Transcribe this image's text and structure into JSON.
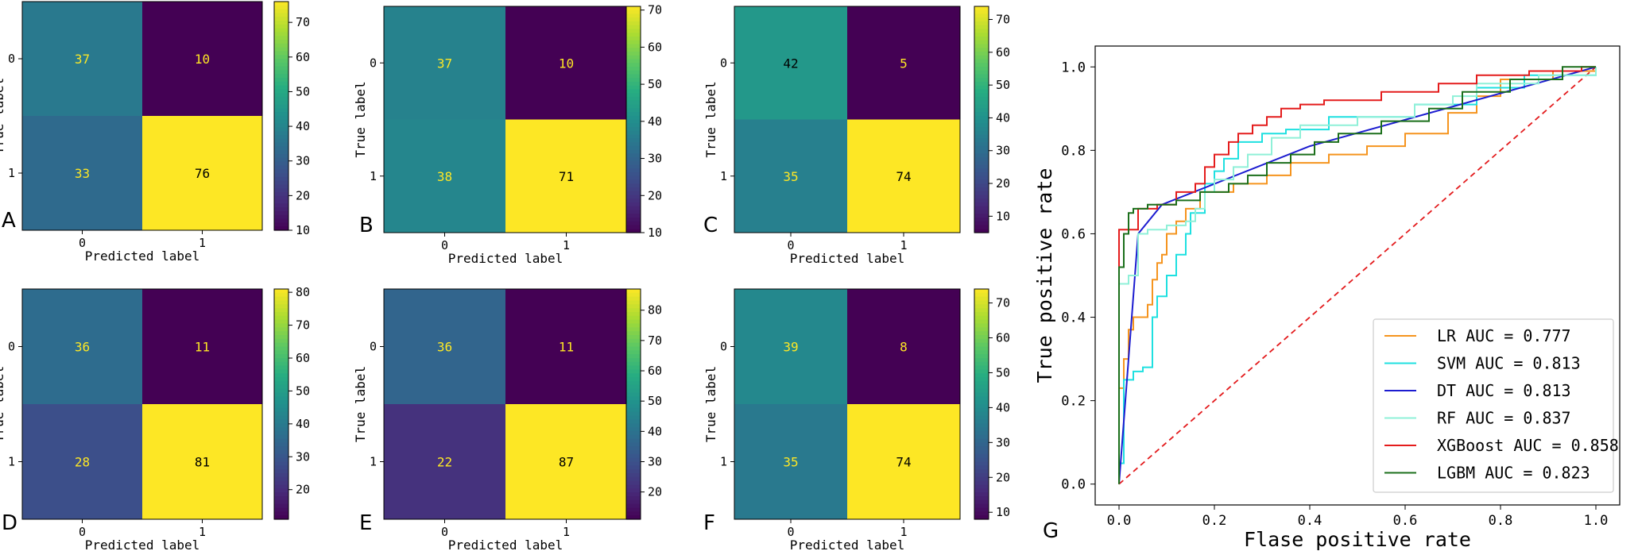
{
  "chart_data": [
    {
      "type": "heatmap",
      "panel": "A",
      "matrix": [
        [
          37,
          10
        ],
        [
          33,
          76
        ]
      ],
      "x_tick_labels": [
        "0",
        "1"
      ],
      "y_tick_labels": [
        "0",
        "1"
      ],
      "xlabel": "Predicted label",
      "ylabel": "True label",
      "colormap": "viridis",
      "colorbar_range": [
        10,
        76
      ],
      "colorbar_ticks": [
        10,
        20,
        30,
        40,
        50,
        60,
        70
      ]
    },
    {
      "type": "heatmap",
      "panel": "B",
      "matrix": [
        [
          37,
          10
        ],
        [
          38,
          71
        ]
      ],
      "x_tick_labels": [
        "0",
        "1"
      ],
      "y_tick_labels": [
        "0",
        "1"
      ],
      "xlabel": "Predicted label",
      "ylabel": "True label",
      "colormap": "viridis",
      "colorbar_range": [
        10,
        71
      ],
      "colorbar_ticks": [
        10,
        20,
        30,
        40,
        50,
        60,
        70
      ]
    },
    {
      "type": "heatmap",
      "panel": "C",
      "matrix": [
        [
          42,
          5
        ],
        [
          35,
          74
        ]
      ],
      "x_tick_labels": [
        "0",
        "1"
      ],
      "y_tick_labels": [
        "0",
        "1"
      ],
      "xlabel": "Predicted label",
      "ylabel": "True label",
      "colormap": "viridis",
      "colorbar_range": [
        5,
        74
      ],
      "colorbar_ticks": [
        10,
        20,
        30,
        40,
        50,
        60,
        70
      ]
    },
    {
      "type": "heatmap",
      "panel": "D",
      "matrix": [
        [
          36,
          11
        ],
        [
          28,
          81
        ]
      ],
      "x_tick_labels": [
        "0",
        "1"
      ],
      "y_tick_labels": [
        "0",
        "1"
      ],
      "xlabel": "Predicted label",
      "ylabel": "True label",
      "colormap": "viridis",
      "colorbar_range": [
        11,
        81
      ],
      "colorbar_ticks": [
        20,
        30,
        40,
        50,
        60,
        70,
        80
      ]
    },
    {
      "type": "heatmap",
      "panel": "E",
      "matrix": [
        [
          36,
          11
        ],
        [
          22,
          87
        ]
      ],
      "x_tick_labels": [
        "0",
        "1"
      ],
      "y_tick_labels": [
        "0",
        "1"
      ],
      "xlabel": "Predicted label",
      "ylabel": "True label",
      "colormap": "viridis",
      "colorbar_range": [
        11,
        87
      ],
      "colorbar_ticks": [
        20,
        30,
        40,
        50,
        60,
        70,
        80
      ]
    },
    {
      "type": "heatmap",
      "panel": "F",
      "matrix": [
        [
          39,
          8
        ],
        [
          35,
          74
        ]
      ],
      "x_tick_labels": [
        "0",
        "1"
      ],
      "y_tick_labels": [
        "0",
        "1"
      ],
      "xlabel": "Predicted label",
      "ylabel": "True label",
      "colormap": "viridis",
      "colorbar_range": [
        8,
        74
      ],
      "colorbar_ticks": [
        10,
        20,
        30,
        40,
        50,
        60,
        70
      ]
    },
    {
      "type": "line",
      "panel": "G",
      "xlabel": "Flase positive rate",
      "ylabel": "True positive rate",
      "xlim": [
        -0.05,
        1.05
      ],
      "ylim": [
        -0.05,
        1.05
      ],
      "x_ticks": [
        "0.0",
        "0.2",
        "0.4",
        "0.6",
        "0.8",
        "1.0"
      ],
      "y_ticks": [
        "0.0",
        "0.2",
        "0.4",
        "0.6",
        "0.8",
        "1.0"
      ],
      "legend_position": "lower-right",
      "reference_line": {
        "from": [
          0,
          0
        ],
        "to": [
          1,
          1
        ],
        "color": "#e31a1c",
        "style": "dashed"
      },
      "series": [
        {
          "name": "LR",
          "legend": "LR AUC = 0.777",
          "color": "#f5941e",
          "points": [
            [
              0,
              0
            ],
            [
              0,
              0.23
            ],
            [
              0.01,
              0.23
            ],
            [
              0.01,
              0.3
            ],
            [
              0.02,
              0.3
            ],
            [
              0.02,
              0.37
            ],
            [
              0.03,
              0.37
            ],
            [
              0.03,
              0.4
            ],
            [
              0.06,
              0.4
            ],
            [
              0.06,
              0.43
            ],
            [
              0.07,
              0.43
            ],
            [
              0.07,
              0.49
            ],
            [
              0.08,
              0.49
            ],
            [
              0.08,
              0.53
            ],
            [
              0.09,
              0.53
            ],
            [
              0.09,
              0.55
            ],
            [
              0.1,
              0.55
            ],
            [
              0.1,
              0.6
            ],
            [
              0.12,
              0.6
            ],
            [
              0.12,
              0.63
            ],
            [
              0.14,
              0.63
            ],
            [
              0.14,
              0.66
            ],
            [
              0.17,
              0.66
            ],
            [
              0.17,
              0.7
            ],
            [
              0.24,
              0.7
            ],
            [
              0.24,
              0.72
            ],
            [
              0.31,
              0.72
            ],
            [
              0.31,
              0.74
            ],
            [
              0.36,
              0.74
            ],
            [
              0.36,
              0.77
            ],
            [
              0.44,
              0.77
            ],
            [
              0.44,
              0.79
            ],
            [
              0.52,
              0.79
            ],
            [
              0.52,
              0.81
            ],
            [
              0.6,
              0.81
            ],
            [
              0.6,
              0.84
            ],
            [
              0.69,
              0.84
            ],
            [
              0.69,
              0.89
            ],
            [
              0.75,
              0.89
            ],
            [
              0.75,
              0.93
            ],
            [
              0.8,
              0.93
            ],
            [
              0.8,
              0.97
            ],
            [
              0.91,
              0.97
            ],
            [
              0.91,
              0.99
            ],
            [
              1,
              0.99
            ],
            [
              1,
              1
            ]
          ]
        },
        {
          "name": "SVM",
          "legend": "SVM AUC = 0.813",
          "color": "#1ee0e0",
          "points": [
            [
              0,
              0
            ],
            [
              0,
              0.05
            ],
            [
              0.01,
              0.05
            ],
            [
              0.01,
              0.25
            ],
            [
              0.03,
              0.25
            ],
            [
              0.03,
              0.27
            ],
            [
              0.05,
              0.27
            ],
            [
              0.05,
              0.28
            ],
            [
              0.07,
              0.28
            ],
            [
              0.07,
              0.4
            ],
            [
              0.08,
              0.4
            ],
            [
              0.08,
              0.45
            ],
            [
              0.1,
              0.45
            ],
            [
              0.1,
              0.5
            ],
            [
              0.12,
              0.5
            ],
            [
              0.12,
              0.55
            ],
            [
              0.14,
              0.55
            ],
            [
              0.14,
              0.6
            ],
            [
              0.15,
              0.6
            ],
            [
              0.15,
              0.65
            ],
            [
              0.18,
              0.65
            ],
            [
              0.18,
              0.72
            ],
            [
              0.2,
              0.72
            ],
            [
              0.2,
              0.75
            ],
            [
              0.22,
              0.75
            ],
            [
              0.22,
              0.78
            ],
            [
              0.25,
              0.78
            ],
            [
              0.25,
              0.82
            ],
            [
              0.3,
              0.82
            ],
            [
              0.3,
              0.84
            ],
            [
              0.35,
              0.84
            ],
            [
              0.35,
              0.85
            ],
            [
              0.44,
              0.85
            ],
            [
              0.44,
              0.88
            ],
            [
              0.62,
              0.88
            ],
            [
              0.62,
              0.91
            ],
            [
              0.75,
              0.91
            ],
            [
              0.75,
              0.95
            ],
            [
              0.85,
              0.95
            ],
            [
              0.85,
              0.98
            ],
            [
              1,
              0.98
            ],
            [
              1,
              1
            ]
          ]
        },
        {
          "name": "DT",
          "legend": "DT AUC = 0.813",
          "color": "#1c1cd0",
          "points": [
            [
              0,
              0
            ],
            [
              0.04,
              0.6
            ],
            [
              0.09,
              0.67
            ],
            [
              0.4,
              0.81
            ],
            [
              1,
              1
            ]
          ]
        },
        {
          "name": "RF",
          "legend": "RF AUC = 0.837",
          "color": "#8ff0d8",
          "points": [
            [
              0,
              0
            ],
            [
              0,
              0.48
            ],
            [
              0.02,
              0.48
            ],
            [
              0.02,
              0.5
            ],
            [
              0.04,
              0.5
            ],
            [
              0.04,
              0.6
            ],
            [
              0.06,
              0.6
            ],
            [
              0.06,
              0.61
            ],
            [
              0.1,
              0.61
            ],
            [
              0.1,
              0.62
            ],
            [
              0.14,
              0.62
            ],
            [
              0.14,
              0.63
            ],
            [
              0.16,
              0.63
            ],
            [
              0.16,
              0.66
            ],
            [
              0.18,
              0.66
            ],
            [
              0.18,
              0.7
            ],
            [
              0.2,
              0.7
            ],
            [
              0.2,
              0.73
            ],
            [
              0.24,
              0.73
            ],
            [
              0.24,
              0.76
            ],
            [
              0.27,
              0.76
            ],
            [
              0.27,
              0.79
            ],
            [
              0.32,
              0.79
            ],
            [
              0.32,
              0.83
            ],
            [
              0.38,
              0.83
            ],
            [
              0.38,
              0.86
            ],
            [
              0.5,
              0.86
            ],
            [
              0.5,
              0.88
            ],
            [
              0.62,
              0.88
            ],
            [
              0.62,
              0.91
            ],
            [
              0.7,
              0.91
            ],
            [
              0.7,
              0.93
            ],
            [
              0.75,
              0.93
            ],
            [
              0.75,
              0.96
            ],
            [
              0.88,
              0.96
            ],
            [
              0.88,
              0.98
            ],
            [
              1,
              0.98
            ],
            [
              1,
              1
            ]
          ]
        },
        {
          "name": "XGBoost",
          "legend": "XGBoost AUC = 0.858",
          "color": "#e41c1c",
          "points": [
            [
              0,
              0
            ],
            [
              0,
              0.61
            ],
            [
              0.04,
              0.61
            ],
            [
              0.04,
              0.66
            ],
            [
              0.08,
              0.66
            ],
            [
              0.08,
              0.67
            ],
            [
              0.12,
              0.67
            ],
            [
              0.12,
              0.7
            ],
            [
              0.16,
              0.7
            ],
            [
              0.16,
              0.72
            ],
            [
              0.18,
              0.72
            ],
            [
              0.18,
              0.76
            ],
            [
              0.2,
              0.76
            ],
            [
              0.2,
              0.79
            ],
            [
              0.23,
              0.79
            ],
            [
              0.23,
              0.82
            ],
            [
              0.25,
              0.82
            ],
            [
              0.25,
              0.84
            ],
            [
              0.28,
              0.84
            ],
            [
              0.28,
              0.86
            ],
            [
              0.31,
              0.86
            ],
            [
              0.31,
              0.88
            ],
            [
              0.34,
              0.88
            ],
            [
              0.34,
              0.9
            ],
            [
              0.38,
              0.9
            ],
            [
              0.38,
              0.91
            ],
            [
              0.43,
              0.91
            ],
            [
              0.43,
              0.92
            ],
            [
              0.55,
              0.92
            ],
            [
              0.55,
              0.94
            ],
            [
              0.67,
              0.94
            ],
            [
              0.67,
              0.96
            ],
            [
              0.75,
              0.96
            ],
            [
              0.75,
              0.98
            ],
            [
              0.86,
              0.98
            ],
            [
              0.86,
              0.99
            ],
            [
              0.97,
              0.99
            ],
            [
              0.97,
              1
            ],
            [
              1,
              1
            ]
          ]
        },
        {
          "name": "LGBM",
          "legend": "LGBM AUC = 0.823",
          "color": "#1b6f1b",
          "points": [
            [
              0,
              0
            ],
            [
              0,
              0.52
            ],
            [
              0.01,
              0.52
            ],
            [
              0.01,
              0.6
            ],
            [
              0.02,
              0.6
            ],
            [
              0.02,
              0.65
            ],
            [
              0.03,
              0.65
            ],
            [
              0.03,
              0.66
            ],
            [
              0.06,
              0.66
            ],
            [
              0.06,
              0.67
            ],
            [
              0.12,
              0.67
            ],
            [
              0.12,
              0.68
            ],
            [
              0.17,
              0.68
            ],
            [
              0.17,
              0.7
            ],
            [
              0.23,
              0.7
            ],
            [
              0.23,
              0.72
            ],
            [
              0.27,
              0.72
            ],
            [
              0.27,
              0.74
            ],
            [
              0.31,
              0.74
            ],
            [
              0.31,
              0.77
            ],
            [
              0.36,
              0.77
            ],
            [
              0.36,
              0.79
            ],
            [
              0.41,
              0.79
            ],
            [
              0.41,
              0.82
            ],
            [
              0.46,
              0.82
            ],
            [
              0.46,
              0.84
            ],
            [
              0.55,
              0.84
            ],
            [
              0.55,
              0.87
            ],
            [
              0.65,
              0.87
            ],
            [
              0.65,
              0.9
            ],
            [
              0.72,
              0.9
            ],
            [
              0.72,
              0.94
            ],
            [
              0.82,
              0.94
            ],
            [
              0.82,
              0.97
            ],
            [
              0.93,
              0.97
            ],
            [
              0.93,
              1
            ],
            [
              1,
              1
            ]
          ]
        }
      ]
    }
  ]
}
